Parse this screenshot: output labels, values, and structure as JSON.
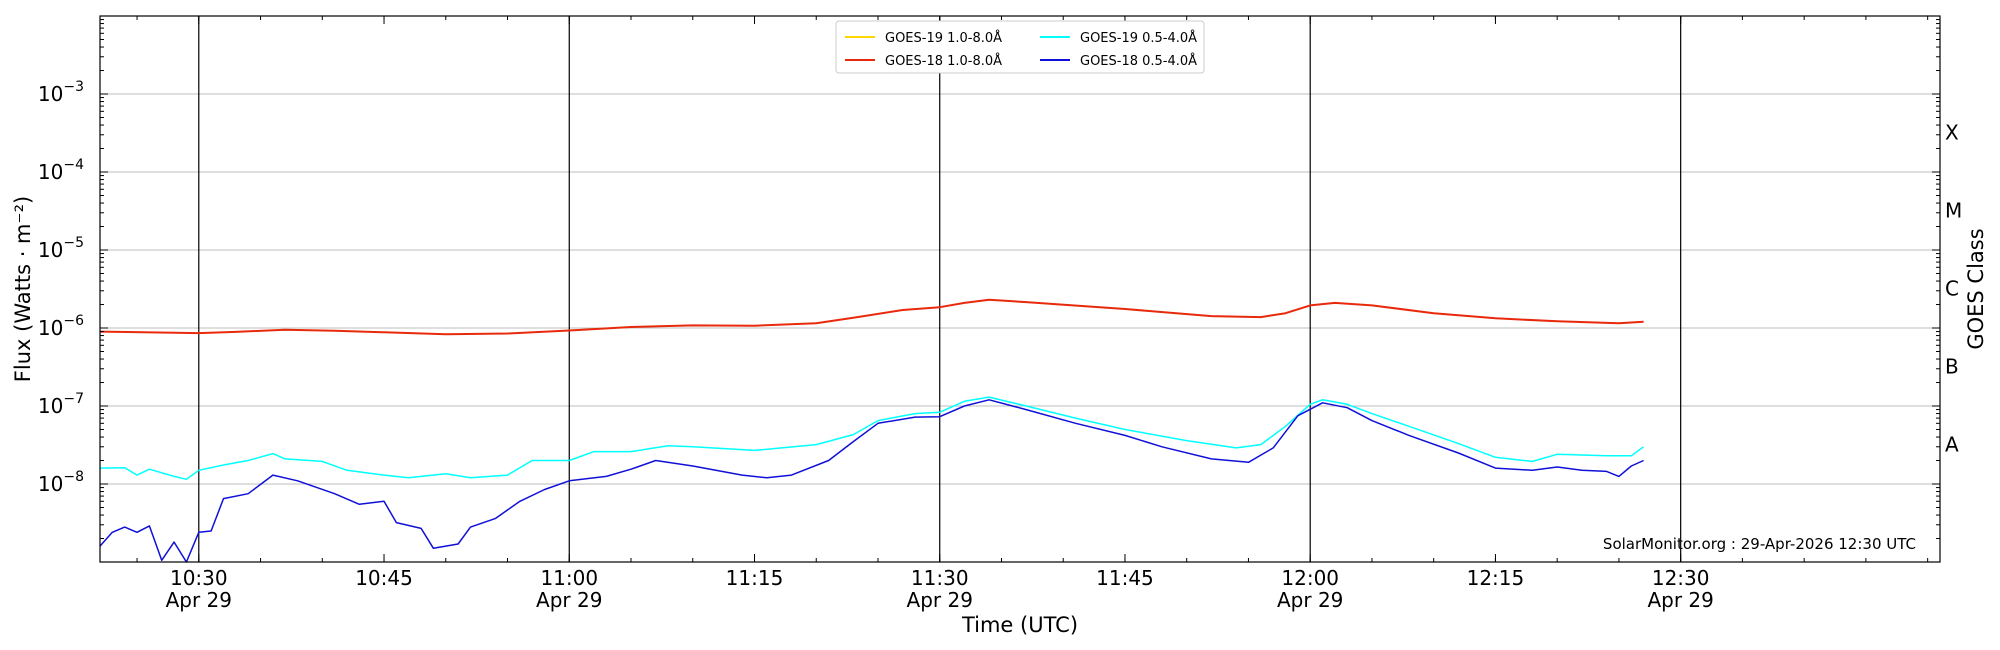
{
  "chart_data": {
    "type": "line",
    "xlabel": "Time (UTC)",
    "ylabel": "Flux (Watts · m⁻²)",
    "y_scale": "log",
    "ylim": [
      1e-09,
      0.01
    ],
    "xlim": [
      "10:22",
      "12:51"
    ],
    "grid": "horizontal",
    "right_axis_label": "GOES Class",
    "class_labels": [
      {
        "label": "X",
        "flux": 0.00032
      },
      {
        "label": "M",
        "flux": 3.2e-05
      },
      {
        "label": "C",
        "flux": 3.2e-06
      },
      {
        "label": "B",
        "flux": 3.2e-07
      },
      {
        "label": "A",
        "flux": 3.2e-08
      }
    ],
    "y_ticks": [
      {
        "value": 1e-08,
        "base": "10",
        "exp": "−8"
      },
      {
        "value": 1e-07,
        "base": "10",
        "exp": "−7"
      },
      {
        "value": 1e-06,
        "base": "10",
        "exp": "−6"
      },
      {
        "value": 1e-05,
        "base": "10",
        "exp": "−5"
      },
      {
        "value": 0.0001,
        "base": "10",
        "exp": "−4"
      },
      {
        "value": 0.001,
        "base": "10",
        "exp": "−3"
      }
    ],
    "x_ticks": [
      {
        "time": "10:30",
        "label": "10:30",
        "date": "Apr 29"
      },
      {
        "time": "10:45",
        "label": "10:45",
        "date": ""
      },
      {
        "time": "11:00",
        "label": "11:00",
        "date": "Apr 29"
      },
      {
        "time": "11:15",
        "label": "11:15",
        "date": ""
      },
      {
        "time": "11:30",
        "label": "11:30",
        "date": "Apr 29"
      },
      {
        "time": "11:45",
        "label": "11:45",
        "date": ""
      },
      {
        "time": "12:00",
        "label": "12:00",
        "date": "Apr 29"
      },
      {
        "time": "12:15",
        "label": "12:15",
        "date": ""
      },
      {
        "time": "12:30",
        "label": "12:30",
        "date": "Apr 29"
      }
    ],
    "vertical_lines": [
      "10:30",
      "11:00",
      "11:30",
      "12:00",
      "12:30"
    ],
    "legend_position": "top-center",
    "series": [
      {
        "name": "GOES-19 1.0-8.0Å",
        "color": "#ffd700",
        "points": []
      },
      {
        "name": "GOES-18 1.0-8.0Å",
        "color": "#e8290b",
        "points": [
          [
            "10:22",
            9e-07
          ],
          [
            "10:30",
            8.6e-07
          ],
          [
            "10:33",
            8.9e-07
          ],
          [
            "10:37",
            9.5e-07
          ],
          [
            "10:41",
            9.2e-07
          ],
          [
            "10:45",
            8.8e-07
          ],
          [
            "10:50",
            8.3e-07
          ],
          [
            "10:55",
            8.5e-07
          ],
          [
            "11:00",
            9.3e-07
          ],
          [
            "11:05",
            1.03e-06
          ],
          [
            "11:10",
            1.08e-06
          ],
          [
            "11:15",
            1.07e-06
          ],
          [
            "11:20",
            1.15e-06
          ],
          [
            "11:23",
            1.35e-06
          ],
          [
            "11:27",
            1.7e-06
          ],
          [
            "11:30",
            1.85e-06
          ],
          [
            "11:32",
            2.1e-06
          ],
          [
            "11:34",
            2.3e-06
          ],
          [
            "11:37",
            2.15e-06
          ],
          [
            "11:45",
            1.75e-06
          ],
          [
            "11:52",
            1.42e-06
          ],
          [
            "11:56",
            1.38e-06
          ],
          [
            "11:58",
            1.55e-06
          ],
          [
            "12:00",
            1.95e-06
          ],
          [
            "12:02",
            2.1e-06
          ],
          [
            "12:05",
            1.95e-06
          ],
          [
            "12:10",
            1.55e-06
          ],
          [
            "12:15",
            1.33e-06
          ],
          [
            "12:20",
            1.22e-06
          ],
          [
            "12:25",
            1.15e-06
          ],
          [
            "12:27",
            1.2e-06
          ]
        ]
      },
      {
        "name": "GOES-19 0.5-4.0Å",
        "color": "#00ffff",
        "points": [
          [
            "10:22",
            1.6e-08
          ],
          [
            "10:24",
            1.62e-08
          ],
          [
            "10:25",
            1.3e-08
          ],
          [
            "10:26",
            1.55e-08
          ],
          [
            "10:28",
            1.25e-08
          ],
          [
            "10:29",
            1.15e-08
          ],
          [
            "10:30",
            1.5e-08
          ],
          [
            "10:32",
            1.75e-08
          ],
          [
            "10:34",
            2e-08
          ],
          [
            "10:36",
            2.45e-08
          ],
          [
            "10:37",
            2.1e-08
          ],
          [
            "10:40",
            1.95e-08
          ],
          [
            "10:42",
            1.5e-08
          ],
          [
            "10:45",
            1.3e-08
          ],
          [
            "10:47",
            1.2e-08
          ],
          [
            "10:50",
            1.35e-08
          ],
          [
            "10:52",
            1.2e-08
          ],
          [
            "10:55",
            1.3e-08
          ],
          [
            "10:57",
            2e-08
          ],
          [
            "11:00",
            2e-08
          ],
          [
            "11:02",
            2.6e-08
          ],
          [
            "11:05",
            2.6e-08
          ],
          [
            "11:08",
            3.1e-08
          ],
          [
            "11:10",
            3e-08
          ],
          [
            "11:15",
            2.7e-08
          ],
          [
            "11:20",
            3.2e-08
          ],
          [
            "11:23",
            4.3e-08
          ],
          [
            "11:25",
            6.5e-08
          ],
          [
            "11:28",
            8e-08
          ],
          [
            "11:30",
            8.3e-08
          ],
          [
            "11:32",
            1.15e-07
          ],
          [
            "11:34",
            1.3e-07
          ],
          [
            "11:37",
            1e-07
          ],
          [
            "11:41",
            7e-08
          ],
          [
            "11:45",
            5e-08
          ],
          [
            "11:50",
            3.6e-08
          ],
          [
            "11:54",
            2.9e-08
          ],
          [
            "11:56",
            3.2e-08
          ],
          [
            "11:58",
            5.5e-08
          ],
          [
            "12:00",
            1.05e-07
          ],
          [
            "12:01",
            1.2e-07
          ],
          [
            "12:03",
            1.05e-07
          ],
          [
            "12:05",
            8e-08
          ],
          [
            "12:08",
            5.5e-08
          ],
          [
            "12:12",
            3.3e-08
          ],
          [
            "12:15",
            2.2e-08
          ],
          [
            "12:18",
            1.95e-08
          ],
          [
            "12:20",
            2.4e-08
          ],
          [
            "12:24",
            2.3e-08
          ],
          [
            "12:26",
            2.3e-08
          ],
          [
            "12:27",
            3e-08
          ]
        ]
      },
      {
        "name": "GOES-18 0.5-4.0Å",
        "color": "#1010d8",
        "points": [
          [
            "10:22",
            1.6e-09
          ],
          [
            "10:23",
            2.4e-09
          ],
          [
            "10:24",
            2.8e-09
          ],
          [
            "10:25",
            2.4e-09
          ],
          [
            "10:26",
            2.9e-09
          ],
          [
            "10:27",
            1.05e-09
          ],
          [
            "10:28",
            1.8e-09
          ],
          [
            "10:29",
            1e-09
          ],
          [
            "10:30",
            2.4e-09
          ],
          [
            "10:31",
            2.5e-09
          ],
          [
            "10:32",
            6.5e-09
          ],
          [
            "10:34",
            7.5e-09
          ],
          [
            "10:36",
            1.3e-08
          ],
          [
            "10:38",
            1.1e-08
          ],
          [
            "10:41",
            7.5e-09
          ],
          [
            "10:43",
            5.5e-09
          ],
          [
            "10:45",
            6e-09
          ],
          [
            "10:46",
            3.2e-09
          ],
          [
            "10:48",
            2.7e-09
          ],
          [
            "10:49",
            1.5e-09
          ],
          [
            "10:51",
            1.7e-09
          ],
          [
            "10:52",
            2.8e-09
          ],
          [
            "10:54",
            3.6e-09
          ],
          [
            "10:56",
            6e-09
          ],
          [
            "10:58",
            8.5e-09
          ],
          [
            "11:00",
            1.1e-08
          ],
          [
            "11:03",
            1.25e-08
          ],
          [
            "11:05",
            1.55e-08
          ],
          [
            "11:07",
            2e-08
          ],
          [
            "11:10",
            1.7e-08
          ],
          [
            "11:14",
            1.3e-08
          ],
          [
            "11:16",
            1.2e-08
          ],
          [
            "11:18",
            1.3e-08
          ],
          [
            "11:21",
            2e-08
          ],
          [
            "11:23",
            3.5e-08
          ],
          [
            "11:25",
            6e-08
          ],
          [
            "11:28",
            7.2e-08
          ],
          [
            "11:30",
            7.3e-08
          ],
          [
            "11:32",
            1e-07
          ],
          [
            "11:34",
            1.2e-07
          ],
          [
            "11:37",
            9e-08
          ],
          [
            "11:41",
            6e-08
          ],
          [
            "11:45",
            4.2e-08
          ],
          [
            "11:48",
            3e-08
          ],
          [
            "11:52",
            2.1e-08
          ],
          [
            "11:55",
            1.9e-08
          ],
          [
            "11:57",
            2.9e-08
          ],
          [
            "11:59",
            7.5e-08
          ],
          [
            "12:01",
            1.1e-07
          ],
          [
            "12:03",
            9.5e-08
          ],
          [
            "12:05",
            6.5e-08
          ],
          [
            "12:08",
            4.2e-08
          ],
          [
            "12:12",
            2.5e-08
          ],
          [
            "12:15",
            1.6e-08
          ],
          [
            "12:18",
            1.5e-08
          ],
          [
            "12:20",
            1.65e-08
          ],
          [
            "12:22",
            1.5e-08
          ],
          [
            "12:24",
            1.45e-08
          ],
          [
            "12:25",
            1.25e-08
          ],
          [
            "12:26",
            1.7e-08
          ],
          [
            "12:27",
            2e-08
          ]
        ]
      }
    ]
  },
  "credit": "SolarMonitor.org : 29-Apr-2026 12:30 UTC"
}
